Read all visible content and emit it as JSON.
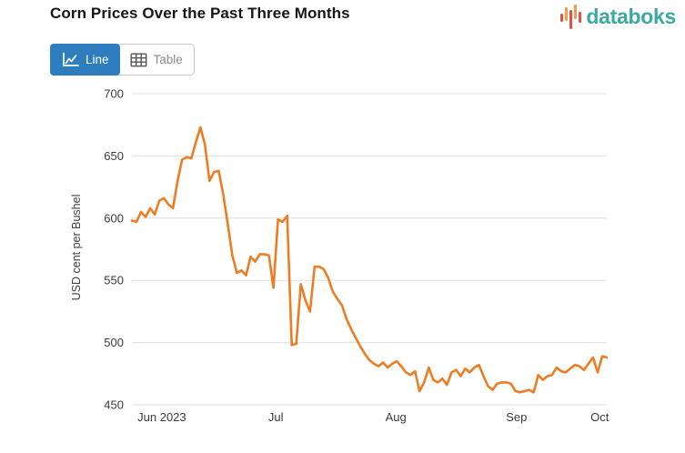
{
  "header": {
    "title": "Corn Prices Over the Past Three Months",
    "brand": "databoks"
  },
  "toolbar": {
    "line_label": "Line",
    "table_label": "Table"
  },
  "colors": {
    "accent_blue": "#2e7dbe",
    "line_orange": "#ef7c23",
    "brand_teal": "#3baaa2",
    "brand_red": "#e25148",
    "brand_orange": "#f19c4f",
    "grid": "#e0e0e0",
    "axis_text": "#3b3b3b"
  },
  "chart_data": {
    "type": "line",
    "title": "Corn Prices Over the Past Three Months",
    "xlabel": "",
    "ylabel": "USD cent per Bushel",
    "ylim": [
      450,
      700
    ],
    "yticks": [
      450,
      500,
      550,
      600,
      650,
      700
    ],
    "x_tick_labels": [
      "Jun 2023",
      "Jul",
      "Aug",
      "Sep",
      "Oct"
    ],
    "x_tick_positions": [
      0.063,
      0.303,
      0.556,
      0.81,
      0.985
    ],
    "grid": "horizontal",
    "legend": "none",
    "series": [
      {
        "name": "Corn Prices",
        "color": "#ef7c23",
        "values": [
          598,
          597,
          605,
          601,
          608,
          603,
          614,
          616,
          611,
          608,
          630,
          647,
          649,
          648,
          661,
          673,
          659,
          630,
          637,
          638,
          619,
          595,
          570,
          556,
          558,
          554,
          569,
          565,
          571,
          571,
          570,
          544,
          599,
          597,
          602,
          498,
          499,
          547,
          534,
          525,
          561,
          561,
          559,
          552,
          541,
          535,
          530,
          519,
          511,
          504,
          497,
          491,
          486,
          483,
          481,
          484,
          480,
          483,
          485,
          481,
          476,
          474,
          477,
          461,
          468,
          480,
          470,
          468,
          471,
          466,
          476,
          478,
          473,
          479,
          476,
          480,
          482,
          473,
          465,
          462,
          467,
          468,
          468,
          467,
          461,
          460,
          461,
          462,
          460,
          474,
          470,
          473,
          474,
          480,
          477,
          476,
          479,
          482,
          481,
          478,
          483,
          488,
          476,
          489,
          488
        ]
      }
    ]
  }
}
